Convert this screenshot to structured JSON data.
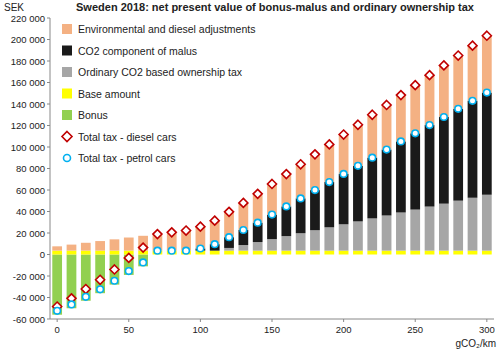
{
  "chart_data": {
    "type": "bar",
    "stacked": true,
    "title": "Sweden 2018: net present value of bonus-malus and ordinary ownership tax",
    "y_label": "SEK",
    "x_label": "gCO₂/km",
    "legend": "upper left",
    "grid": false,
    "x": [
      0,
      10,
      20,
      30,
      40,
      50,
      60,
      70,
      80,
      90,
      100,
      110,
      120,
      130,
      140,
      150,
      160,
      170,
      180,
      190,
      200,
      210,
      220,
      230,
      240,
      250,
      260,
      270,
      280,
      290,
      300
    ],
    "xlim": [
      -5,
      305
    ],
    "xticks": [
      0,
      50,
      100,
      150,
      200,
      250,
      300
    ],
    "ylim": [
      -60000,
      220000
    ],
    "yticks": [
      {
        "value": -60000,
        "label": "-60 000"
      },
      {
        "value": -40000,
        "label": "-40 000"
      },
      {
        "value": -20000,
        "label": "-20 000"
      },
      0,
      {
        "value": 20000,
        "label": "20 000"
      },
      {
        "value": 40000,
        "label": "40 000"
      },
      {
        "value": 60000,
        "label": "60 000"
      },
      {
        "value": 80000,
        "label": "80 000"
      },
      {
        "value": 100000,
        "label": "100 000"
      },
      {
        "value": 120000,
        "label": "120 000"
      },
      {
        "value": 140000,
        "label": "140 000"
      },
      {
        "value": 160000,
        "label": "160 000"
      },
      {
        "value": 180000,
        "label": "180 000"
      },
      {
        "value": 200000,
        "label": "200 000"
      },
      {
        "value": 220000,
        "label": "220 000"
      }
    ],
    "series": [
      {
        "name": "Environmental and diesel adjustments",
        "type": "bar",
        "color": "#F4B183",
        "values": [
          4000,
          5600,
          7300,
          8900,
          10500,
          12200,
          13800,
          15400,
          17000,
          18700,
          20300,
          21900,
          23600,
          25200,
          26800,
          28500,
          30100,
          31700,
          33300,
          35000,
          36600,
          38200,
          39900,
          41500,
          43100,
          44800,
          46400,
          48000,
          49600,
          51300,
          52900
        ]
      },
      {
        "name": "CO2 component of malus",
        "type": "bar",
        "color": "#1a1a1a",
        "values": [
          0,
          0,
          0,
          0,
          0,
          0,
          0,
          0,
          0,
          0,
          2000,
          6000,
          10000,
          14000,
          18000,
          22800,
          27600,
          32400,
          37300,
          42100,
          46900,
          51700,
          56500,
          61300,
          66100,
          70900,
          75800,
          80600,
          85400,
          90200,
          95000
        ]
      },
      {
        "name": "Ordinary CO2 based ownership tax",
        "type": "bar",
        "color": "#A6A6A6",
        "values": [
          0,
          0,
          0,
          0,
          0,
          0,
          0,
          0,
          0,
          0,
          0,
          0,
          2500,
          5200,
          8000,
          10700,
          13500,
          16200,
          19000,
          21700,
          24500,
          27200,
          30000,
          32700,
          35500,
          38200,
          41000,
          43700,
          46500,
          49200,
          52000
        ]
      },
      {
        "name": "Base amount",
        "type": "bar",
        "color": "#FFFF00",
        "values": [
          3600,
          3600,
          3600,
          3600,
          3600,
          3600,
          3600,
          3600,
          3600,
          3600,
          3600,
          3600,
          3600,
          3600,
          3600,
          3600,
          3600,
          3600,
          3600,
          3600,
          3600,
          3600,
          3600,
          3600,
          3600,
          3600,
          3600,
          3600,
          3600,
          3600,
          3600
        ]
      },
      {
        "name": "Bonus",
        "type": "bar",
        "color": "#92D050",
        "values": [
          -56000,
          -50000,
          -43000,
          -36000,
          -28000,
          -19000,
          -11000,
          0,
          0,
          0,
          0,
          0,
          0,
          0,
          0,
          0,
          0,
          0,
          0,
          0,
          0,
          0,
          0,
          0,
          0,
          0,
          0,
          0,
          0,
          0,
          0
        ]
      },
      {
        "name": "Total tax - diesel cars",
        "type": "scatter",
        "marker": "diamond",
        "color": "#C00000",
        "values": [
          -48400,
          -40800,
          -32100,
          -23500,
          -13900,
          -3200,
          6400,
          19000,
          20600,
          22300,
          25900,
          31500,
          39700,
          48000,
          56400,
          65600,
          74800,
          83900,
          93200,
          102400,
          111600,
          120700,
          130000,
          139100,
          148300,
          157500,
          166800,
          175900,
          185100,
          194300,
          203500
        ]
      },
      {
        "name": "Total tax - petrol cars",
        "type": "scatter",
        "marker": "circle",
        "color": "#00B0F0",
        "values": [
          -52400,
          -46400,
          -39400,
          -32400,
          -24400,
          -15400,
          -7400,
          3600,
          3600,
          3600,
          5600,
          9600,
          16100,
          22800,
          29600,
          37100,
          44700,
          52200,
          59900,
          67400,
          75000,
          82500,
          90100,
          97600,
          105200,
          112700,
          120400,
          127900,
          135500,
          143000,
          150600
        ]
      }
    ]
  }
}
